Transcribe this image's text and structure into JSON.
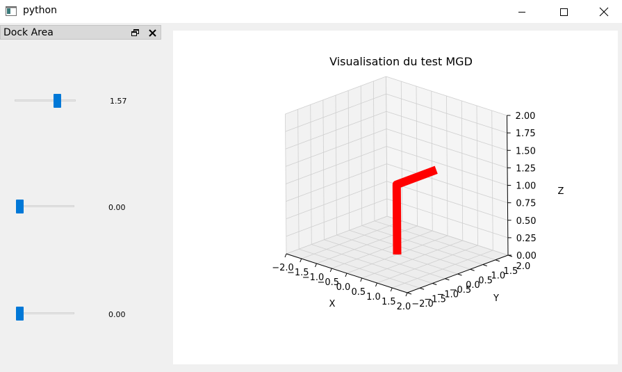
{
  "window": {
    "title": "python",
    "icon": "python-window-icon",
    "controls": [
      "minimize-icon",
      "maximize-icon",
      "close-icon"
    ]
  },
  "dock": {
    "title": "Dock Area",
    "controls": [
      "float-icon",
      "close-icon"
    ]
  },
  "sliders": [
    {
      "value_label": "1.57",
      "position": 0.7
    },
    {
      "value_label": "0.00",
      "position": 0.0
    },
    {
      "value_label": "0.00",
      "position": 0.0
    }
  ],
  "chart_data": {
    "type": "line3d",
    "title": "Visualisation du test MGD",
    "xlabel": "X",
    "ylabel": "Y",
    "zlabel": "Z",
    "xlim": [
      -2.0,
      2.0
    ],
    "ylim": [
      -2.0,
      2.0
    ],
    "zlim": [
      0.0,
      2.0
    ],
    "x_ticks": [
      "−2.0",
      "−1.5",
      "−1.0",
      "−0.5",
      "0.0",
      "0.5",
      "1.0",
      "1.5",
      "2.0"
    ],
    "y_ticks": [
      "−2.0",
      "−1.5",
      "−1.0",
      "−0.5",
      "0.0",
      "0.5",
      "1.0",
      "1.5",
      "2.0"
    ],
    "z_ticks": [
      "0.00",
      "0.25",
      "0.50",
      "0.75",
      "1.00",
      "1.25",
      "1.50",
      "1.75",
      "2.00"
    ],
    "grid": true,
    "series": [
      {
        "color": "#ff0000",
        "points": [
          {
            "x": 0.0,
            "y": 0.0,
            "z": 0.0
          },
          {
            "x": 0.0,
            "y": 0.0,
            "z": 1.0
          },
          {
            "x": 0.0,
            "y": 1.57,
            "z": 1.0
          }
        ]
      }
    ]
  }
}
